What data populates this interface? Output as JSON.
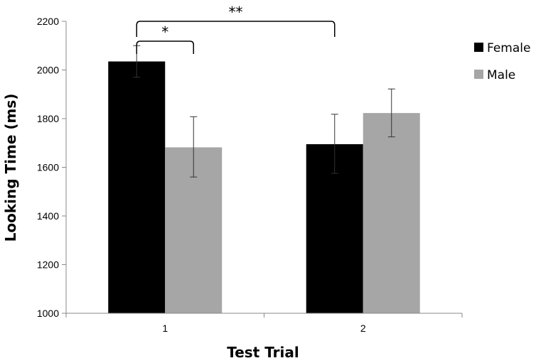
{
  "chart_data": {
    "type": "bar",
    "title": "",
    "xlabel": "Test Trial",
    "ylabel": "Looking Time (ms)",
    "categories": [
      "1",
      "2"
    ],
    "ylim": [
      1000,
      2200
    ],
    "yticks": [
      1000,
      1200,
      1400,
      1600,
      1800,
      2000,
      2200
    ],
    "grid": false,
    "legend_position": "right",
    "series": [
      {
        "name": "Female",
        "color": "#000000",
        "values": [
          2035,
          1695
        ],
        "error": [
          [
            1970,
            2100
          ],
          [
            1575,
            1818
          ]
        ]
      },
      {
        "name": "Male",
        "color": "#a6a6a6",
        "values": [
          1682,
          1823
        ],
        "error": [
          [
            1560,
            1808
          ],
          [
            1725,
            1922
          ]
        ]
      }
    ],
    "annotations": [
      {
        "label": "*",
        "from": {
          "category": "1",
          "series": "Female"
        },
        "to": {
          "category": "1",
          "series": "Male"
        }
      },
      {
        "label": "**",
        "from": {
          "category": "1",
          "series": "Female"
        },
        "to": {
          "category": "2",
          "series": "Female"
        }
      }
    ]
  }
}
